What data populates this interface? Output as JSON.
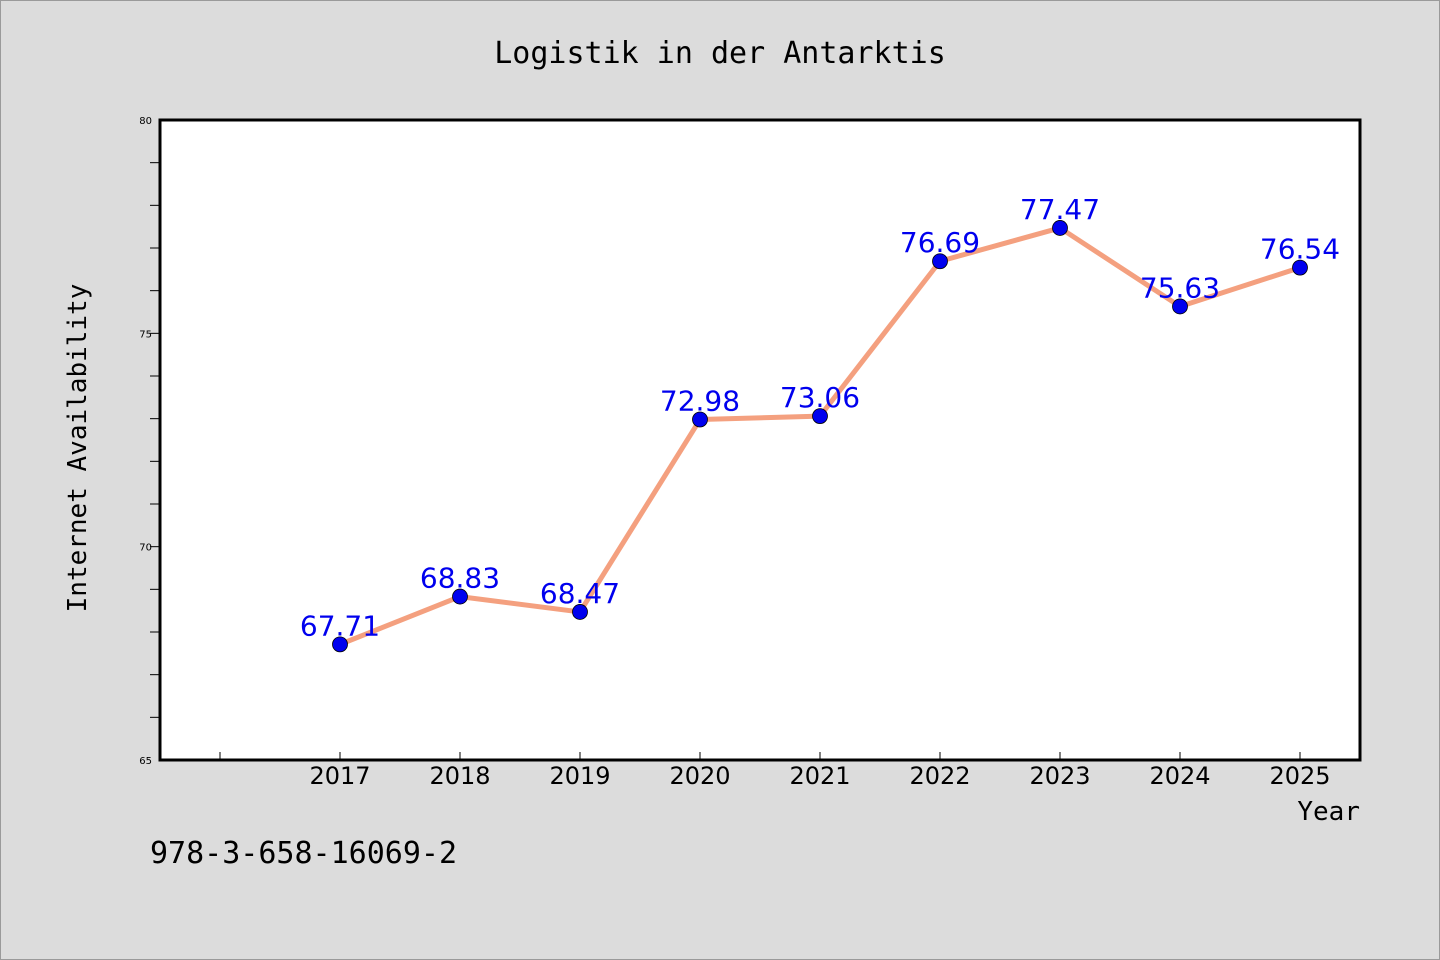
{
  "chart_data": {
    "type": "line",
    "title": "Logistik in der Antarktis",
    "xlabel": "Year",
    "ylabel": "Internet Availability",
    "categories": [
      "2017",
      "2018",
      "2019",
      "2020",
      "2021",
      "2022",
      "2023",
      "2024",
      "2025"
    ],
    "series": [
      {
        "values": [
          67.71,
          68.83,
          68.47,
          72.98,
          73.06,
          76.69,
          77.47,
          75.63,
          76.54
        ],
        "data_labels": [
          "67.71",
          "68.83",
          "68.47",
          "72.98",
          "73.06",
          "76.69",
          "77.47",
          "75.63",
          "76.54"
        ],
        "line_color": "#f4a07f",
        "marker_color": "#0000ee",
        "label_color": "#0000ee"
      }
    ],
    "ylim": [
      65,
      80
    ],
    "yticks": [
      "65",
      "70",
      "75",
      "80"
    ],
    "grid": false,
    "legend": false
  },
  "footer": {
    "text": "978-3-658-16069-2"
  },
  "colors": {
    "background": "#dcdcdc",
    "plot_background": "#ffffff",
    "axis": "#000000"
  }
}
